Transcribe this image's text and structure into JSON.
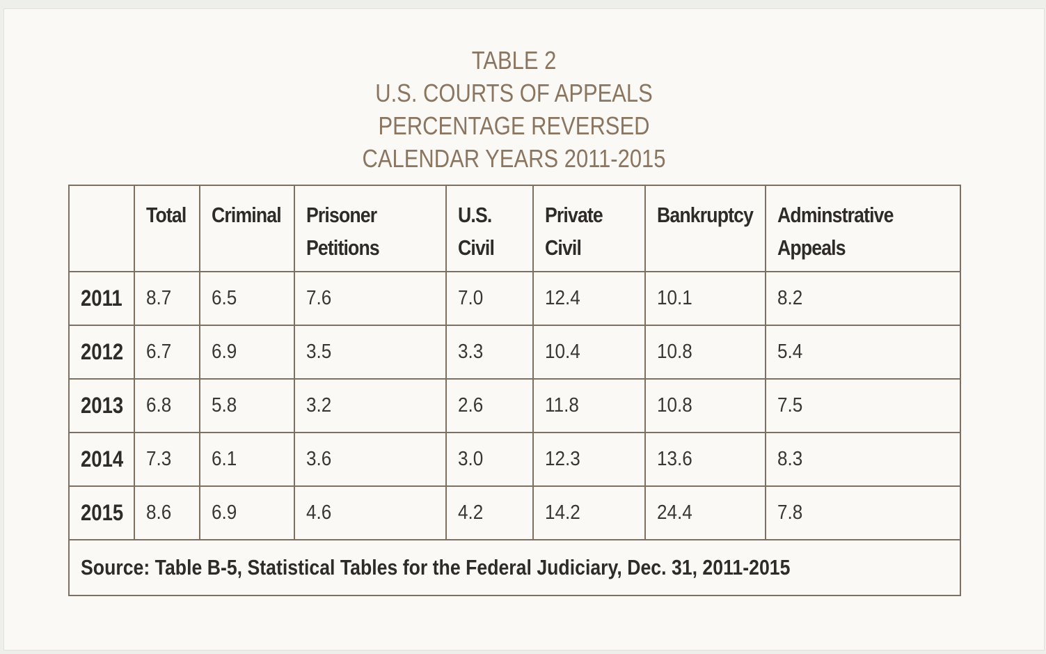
{
  "title": {
    "line1": "TABLE 2",
    "line2": "U.S. COURTS OF APPEALS",
    "line3": "PERCENTAGE REVERSED",
    "line4": "CALENDAR YEARS 2011-2015"
  },
  "colors": {
    "title": "#8a7560",
    "border": "#7d7060",
    "background": "#faf9f5"
  },
  "table": {
    "headers": {
      "total": [
        "Total"
      ],
      "criminal": [
        "Criminal"
      ],
      "prisoner": [
        "Prisoner",
        "Petitions"
      ],
      "us_civil": [
        "U.S.",
        "Civil"
      ],
      "private_civil": [
        "Private",
        "Civil"
      ],
      "bankruptcy": [
        "Bankruptcy"
      ],
      "administrative": [
        "Adminstrative",
        "Appeals"
      ]
    },
    "rows": [
      {
        "year": "2011",
        "values": [
          "8.7",
          "6.5",
          "7.6",
          "7.0",
          "12.4",
          "10.1",
          "8.2"
        ]
      },
      {
        "year": "2012",
        "values": [
          "6.7",
          "6.9",
          "3.5",
          "3.3",
          "10.4",
          "10.8",
          "5.4"
        ]
      },
      {
        "year": "2013",
        "values": [
          "6.8",
          "5.8",
          "3.2",
          "2.6",
          "11.8",
          "10.8",
          "7.5"
        ]
      },
      {
        "year": "2014",
        "values": [
          "7.3",
          "6.1",
          "3.6",
          "3.0",
          "12.3",
          "13.6",
          "8.3"
        ]
      },
      {
        "year": "2015",
        "values": [
          "8.6",
          "6.9",
          "4.6",
          "4.2",
          "14.2",
          "24.4",
          "7.8"
        ]
      }
    ],
    "source": "Source: Table B-5, Statistical Tables for the Federal Judiciary, Dec. 31, 2011-2015"
  }
}
